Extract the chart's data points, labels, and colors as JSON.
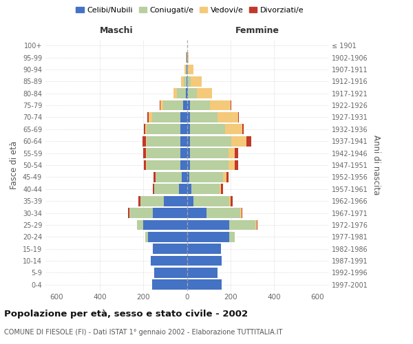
{
  "age_groups": [
    "0-4",
    "5-9",
    "10-14",
    "15-19",
    "20-24",
    "25-29",
    "30-34",
    "35-39",
    "40-44",
    "45-49",
    "50-54",
    "55-59",
    "60-64",
    "65-69",
    "70-74",
    "75-79",
    "80-84",
    "85-89",
    "90-94",
    "95-99",
    "100+"
  ],
  "birth_years": [
    "1997-2001",
    "1992-1996",
    "1987-1991",
    "1982-1986",
    "1977-1981",
    "1972-1976",
    "1967-1971",
    "1962-1966",
    "1957-1961",
    "1952-1956",
    "1947-1951",
    "1942-1946",
    "1937-1941",
    "1932-1936",
    "1927-1931",
    "1922-1926",
    "1917-1921",
    "1912-1916",
    "1907-1911",
    "1902-1906",
    "≤ 1901"
  ],
  "maschi": {
    "celibi": [
      160,
      150,
      165,
      155,
      180,
      200,
      155,
      105,
      35,
      25,
      30,
      30,
      30,
      30,
      30,
      18,
      5,
      3,
      1,
      1,
      0
    ],
    "coniugati": [
      0,
      0,
      0,
      0,
      10,
      30,
      110,
      110,
      115,
      120,
      155,
      155,
      155,
      155,
      130,
      90,
      40,
      12,
      4,
      2,
      0
    ],
    "vedovi": [
      0,
      0,
      0,
      0,
      0,
      0,
      0,
      0,
      0,
      0,
      3,
      3,
      3,
      5,
      15,
      15,
      18,
      12,
      5,
      2,
      0
    ],
    "divorziati": [
      0,
      0,
      0,
      0,
      0,
      0,
      5,
      8,
      8,
      8,
      10,
      12,
      15,
      8,
      8,
      3,
      0,
      0,
      0,
      0,
      0
    ]
  },
  "femmine": {
    "nubili": [
      160,
      140,
      160,
      155,
      195,
      195,
      90,
      30,
      20,
      12,
      15,
      15,
      15,
      15,
      15,
      15,
      5,
      3,
      1,
      1,
      0
    ],
    "coniugate": [
      0,
      0,
      0,
      0,
      25,
      120,
      155,
      165,
      130,
      155,
      175,
      175,
      190,
      160,
      125,
      90,
      40,
      15,
      5,
      2,
      0
    ],
    "vedove": [
      0,
      0,
      0,
      0,
      0,
      5,
      5,
      5,
      5,
      15,
      30,
      30,
      70,
      80,
      95,
      95,
      70,
      50,
      25,
      5,
      0
    ],
    "divorziate": [
      0,
      0,
      0,
      0,
      0,
      3,
      5,
      10,
      10,
      10,
      15,
      15,
      20,
      5,
      5,
      5,
      0,
      0,
      0,
      0,
      0
    ]
  },
  "colors": {
    "celibi": "#4472c4",
    "coniugati": "#b8cfa0",
    "vedovi": "#f5c97a",
    "divorziati": "#c0392b"
  },
  "xlim": 650,
  "title": "Popolazione per età, sesso e stato civile - 2002",
  "subtitle": "COMUNE DI FIESOLE (FI) - Dati ISTAT 1° gennaio 2002 - Elaborazione TUTTITALIA.IT",
  "ylabel_left": "Fasce di età",
  "ylabel_right": "Anni di nascita",
  "legend_labels": [
    "Celibi/Nubili",
    "Coniugati/e",
    "Vedovi/e",
    "Divorziati/e"
  ],
  "background_color": "#ffffff"
}
